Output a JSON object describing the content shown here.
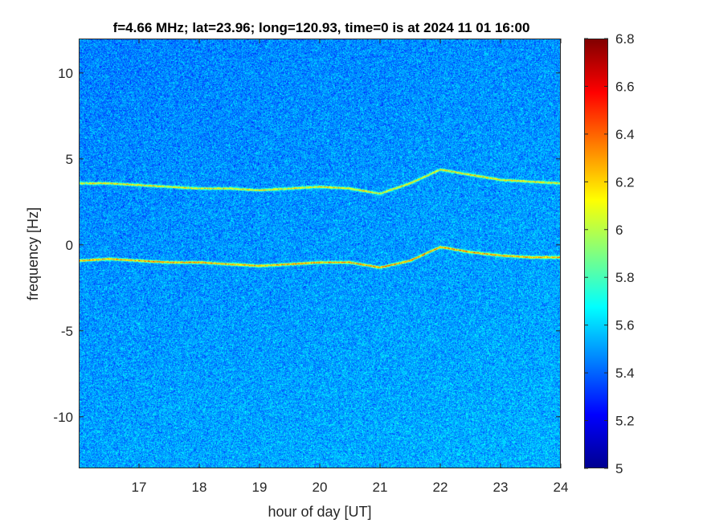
{
  "chart_data": {
    "type": "heatmap",
    "title": "f=4.66 MHz;  lat=23.96; long=120.93, time=0 is at 2024 11 01 16:00",
    "xlabel": "hour of day [UT]",
    "ylabel": "frequency [Hz]",
    "xlim": [
      16,
      24
    ],
    "ylim": [
      -13,
      12
    ],
    "x_ticks": [
      17,
      18,
      19,
      20,
      21,
      22,
      23,
      24
    ],
    "y_ticks": [
      10,
      5,
      0,
      -5,
      -10
    ],
    "colorbar": {
      "clim": [
        5,
        6.8
      ],
      "ticks": [
        6.8,
        6.6,
        6.4,
        6.2,
        6,
        5.8,
        5.6,
        5.4,
        5.2,
        5
      ],
      "colormap": "jet",
      "colors": [
        "#00008f",
        "#0000ff",
        "#0080ff",
        "#00ffff",
        "#80ff80",
        "#ffff00",
        "#ff8000",
        "#ff0000",
        "#800000"
      ]
    },
    "background_level": 5.45,
    "traces": [
      {
        "points": [
          [
            16.0,
            -0.9
          ],
          [
            16.5,
            -0.8
          ],
          [
            17.0,
            -0.9
          ],
          [
            17.5,
            -1.0
          ],
          [
            18.0,
            -1.0
          ],
          [
            18.5,
            -1.1
          ],
          [
            19.0,
            -1.2
          ],
          [
            19.5,
            -1.1
          ],
          [
            20.0,
            -1.0
          ],
          [
            20.5,
            -1.0
          ],
          [
            21.0,
            -1.3
          ],
          [
            21.5,
            -0.9
          ],
          [
            22.0,
            -0.1
          ],
          [
            22.5,
            -0.4
          ],
          [
            23.0,
            -0.6
          ],
          [
            23.5,
            -0.7
          ],
          [
            24.0,
            -0.7
          ]
        ],
        "level": 6.5
      },
      {
        "points": [
          [
            16.0,
            3.6
          ],
          [
            16.5,
            3.6
          ],
          [
            17.0,
            3.5
          ],
          [
            17.5,
            3.4
          ],
          [
            18.0,
            3.3
          ],
          [
            18.5,
            3.3
          ],
          [
            19.0,
            3.2
          ],
          [
            19.5,
            3.3
          ],
          [
            20.0,
            3.4
          ],
          [
            20.5,
            3.3
          ],
          [
            21.0,
            3.0
          ],
          [
            21.5,
            3.6
          ],
          [
            22.0,
            4.4
          ],
          [
            22.5,
            4.1
          ],
          [
            23.0,
            3.8
          ],
          [
            23.5,
            3.7
          ],
          [
            24.0,
            3.6
          ]
        ],
        "level": 6.3
      }
    ],
    "grid": false,
    "legend": "none"
  }
}
